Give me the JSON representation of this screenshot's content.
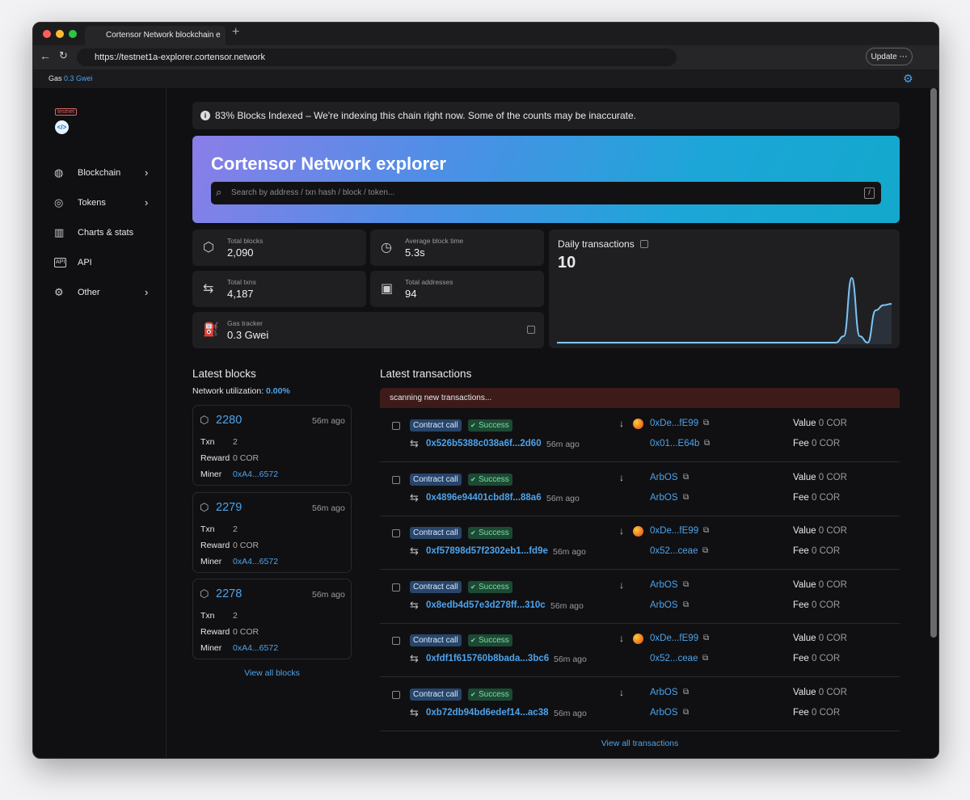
{
  "browser": {
    "tab_title": "Cortensor Network blockchain e",
    "url": "https://testnet1a-explorer.cortensor.network",
    "update_button": "Update"
  },
  "topbar": {
    "gas_label": "Gas",
    "gas_value": "0.3 Gwei"
  },
  "sidebar": {
    "badge": "testnet",
    "nav": [
      {
        "label": "Blockchain",
        "submenu": true
      },
      {
        "label": "Tokens",
        "submenu": true
      },
      {
        "label": "Charts & stats",
        "submenu": false
      },
      {
        "label": "API",
        "submenu": false
      },
      {
        "label": "Other",
        "submenu": true
      }
    ]
  },
  "notice": "83% Blocks Indexed – We're indexing this chain right now. Some of the counts may be inaccurate.",
  "hero": {
    "title": "Cortensor Network explorer",
    "search_placeholder": "Search by address / txn hash / block / token...",
    "shortcut": "/"
  },
  "stats": [
    {
      "label": "Total blocks",
      "value": "2,090"
    },
    {
      "label": "Average block time",
      "value": "5.3s"
    },
    {
      "label": "Total txns",
      "value": "4,187"
    },
    {
      "label": "Total addresses",
      "value": "94"
    },
    {
      "label": "Gas tracker",
      "value": "0.3 Gwei"
    }
  ],
  "daily_transactions": {
    "label": "Daily transactions",
    "value": "10",
    "sparkline": [
      0,
      0,
      0,
      0,
      0,
      0,
      0,
      0,
      0,
      0,
      0,
      0,
      0,
      0,
      0,
      0,
      0,
      0,
      0,
      0,
      0,
      0,
      0,
      0,
      0,
      0,
      0,
      0,
      0,
      0,
      0,
      0,
      0,
      0,
      0,
      0,
      1,
      10,
      1,
      0,
      5,
      5.8,
      6
    ]
  },
  "latest_blocks": {
    "title": "Latest blocks",
    "utilization_label": "Network utilization:",
    "utilization_value": "0.00%",
    "txn_label": "Txn",
    "reward_label": "Reward",
    "miner_label": "Miner",
    "blocks": [
      {
        "number": "2280",
        "age": "56m ago",
        "txn": "2",
        "reward": "0 COR",
        "miner": "0xA4...6572"
      },
      {
        "number": "2279",
        "age": "56m ago",
        "txn": "2",
        "reward": "0 COR",
        "miner": "0xA4...6572"
      },
      {
        "number": "2278",
        "age": "56m ago",
        "txn": "2",
        "reward": "0 COR",
        "miner": "0xA4...6572"
      }
    ],
    "view_all": "View all blocks"
  },
  "latest_transactions": {
    "title": "Latest transactions",
    "banner": "scanning new transactions...",
    "value_label": "Value",
    "fee_label": "Fee",
    "txs": [
      {
        "type": "Contract call",
        "status": "Success",
        "hash": "0x526b5388c038a6f...2d60",
        "age": "56m ago",
        "from": "0xDe...fE99",
        "from_icon": true,
        "to": "0x01...E64b",
        "value": "0 COR",
        "fee": "0 COR"
      },
      {
        "type": "Contract call",
        "status": "Success",
        "hash": "0x4896e94401cbd8f...88a6",
        "age": "56m ago",
        "from": "ArbOS",
        "from_icon": false,
        "to": "ArbOS",
        "value": "0 COR",
        "fee": "0 COR"
      },
      {
        "type": "Contract call",
        "status": "Success",
        "hash": "0xf57898d57f2302eb1...fd9e",
        "age": "56m ago",
        "from": "0xDe...fE99",
        "from_icon": true,
        "to": "0x52...ceae",
        "value": "0 COR",
        "fee": "0 COR"
      },
      {
        "type": "Contract call",
        "status": "Success",
        "hash": "0x8edb4d57e3d278ff...310c",
        "age": "56m ago",
        "from": "ArbOS",
        "from_icon": false,
        "to": "ArbOS",
        "value": "0 COR",
        "fee": "0 COR"
      },
      {
        "type": "Contract call",
        "status": "Success",
        "hash": "0xfdf1f615760b8bada...3bc6",
        "age": "56m ago",
        "from": "0xDe...fE99",
        "from_icon": true,
        "to": "0x52...ceae",
        "value": "0 COR",
        "fee": "0 COR"
      },
      {
        "type": "Contract call",
        "status": "Success",
        "hash": "0xb72db94bd6edef14...ac38",
        "age": "56m ago",
        "from": "ArbOS",
        "from_icon": false,
        "to": "ArbOS",
        "value": "0 COR",
        "fee": "0 COR"
      }
    ],
    "view_all": "View all transactions"
  }
}
